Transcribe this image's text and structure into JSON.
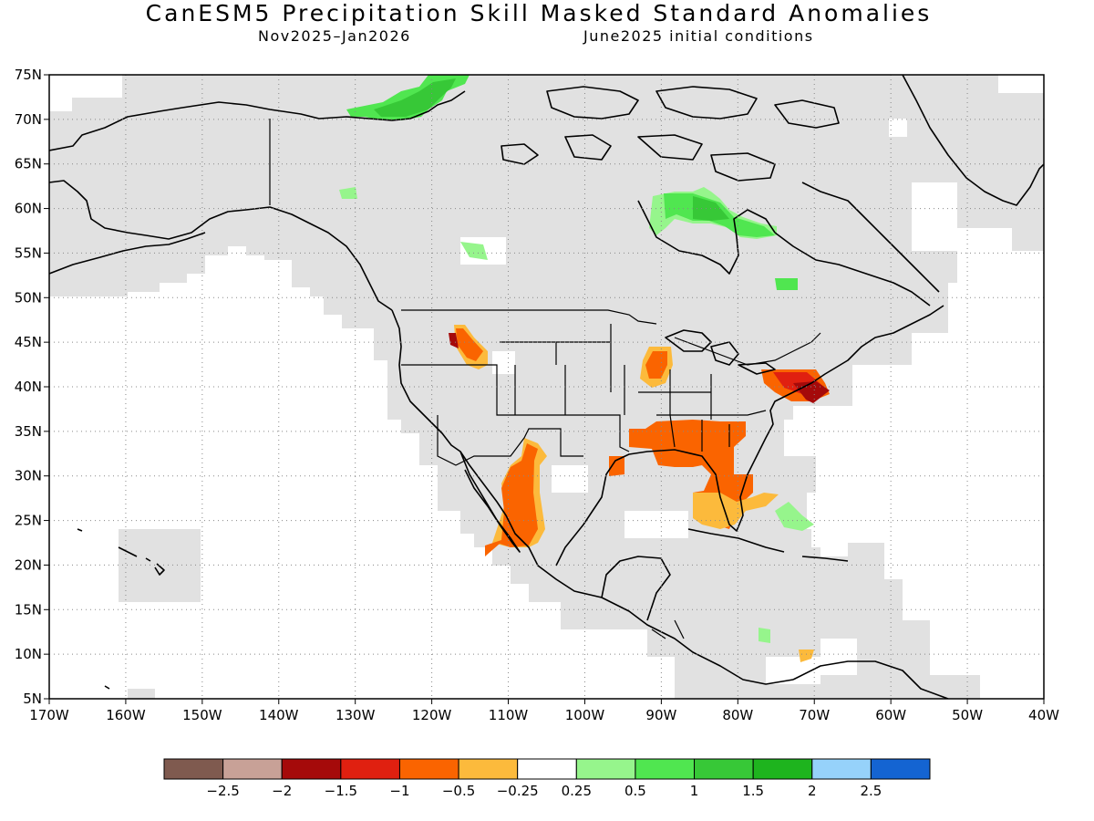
{
  "title": "CanESM5 Precipitation Skill Masked Standard Anomalies",
  "subtitle_left": "Nov2025–Jan2026",
  "subtitle_right": "June2025 initial conditions",
  "map": {
    "lon_range": [
      -170,
      -40
    ],
    "lat_range": [
      5,
      75
    ],
    "lon_ticks": [
      "170W",
      "160W",
      "150W",
      "140W",
      "130W",
      "120W",
      "110W",
      "100W",
      "90W",
      "80W",
      "70W",
      "60W",
      "50W",
      "40W"
    ],
    "lat_ticks": [
      "5N",
      "10N",
      "15N",
      "20N",
      "25N",
      "30N",
      "35N",
      "40N",
      "45N",
      "50N",
      "55N",
      "60N",
      "65N",
      "70N",
      "75N"
    ],
    "grid": "dotted",
    "mask_color": "#e1e1e1",
    "anomaly_regions": [
      {
        "region": "Idaho / Snake River Plain",
        "value": -0.75
      },
      {
        "region": "Wisconsin / Illinois",
        "value": -0.75
      },
      {
        "region": "Mid-Atlantic / Long Island",
        "value": -1.25
      },
      {
        "region": "Southeast US / Florida",
        "value": -0.75
      },
      {
        "region": "Northwest Mexico",
        "value": -0.75
      },
      {
        "region": "Texas Gulf coast",
        "value": -0.75
      },
      {
        "region": "Northern Alaska coast",
        "value": 1.25
      },
      {
        "region": "Hudson Bay east",
        "value": 1.25
      },
      {
        "region": "Bahamas",
        "value": 0.6
      },
      {
        "region": "Venezuela coast",
        "value": -0.4
      }
    ]
  },
  "colorbar": {
    "colors": [
      "#7f5a4f",
      "#c8a197",
      "#a50a0a",
      "#e02010",
      "#fa6400",
      "#fcba3c",
      "#ffffff",
      "#96f58c",
      "#50e650",
      "#37c837",
      "#1eb41e",
      "#96d2fa",
      "#1464d2"
    ],
    "labels": [
      "−2.5",
      "−2",
      "−1.5",
      "−1",
      "−0.5",
      "−0.25",
      "0.25",
      "0.5",
      "1",
      "1.5",
      "2",
      "2.5"
    ]
  }
}
